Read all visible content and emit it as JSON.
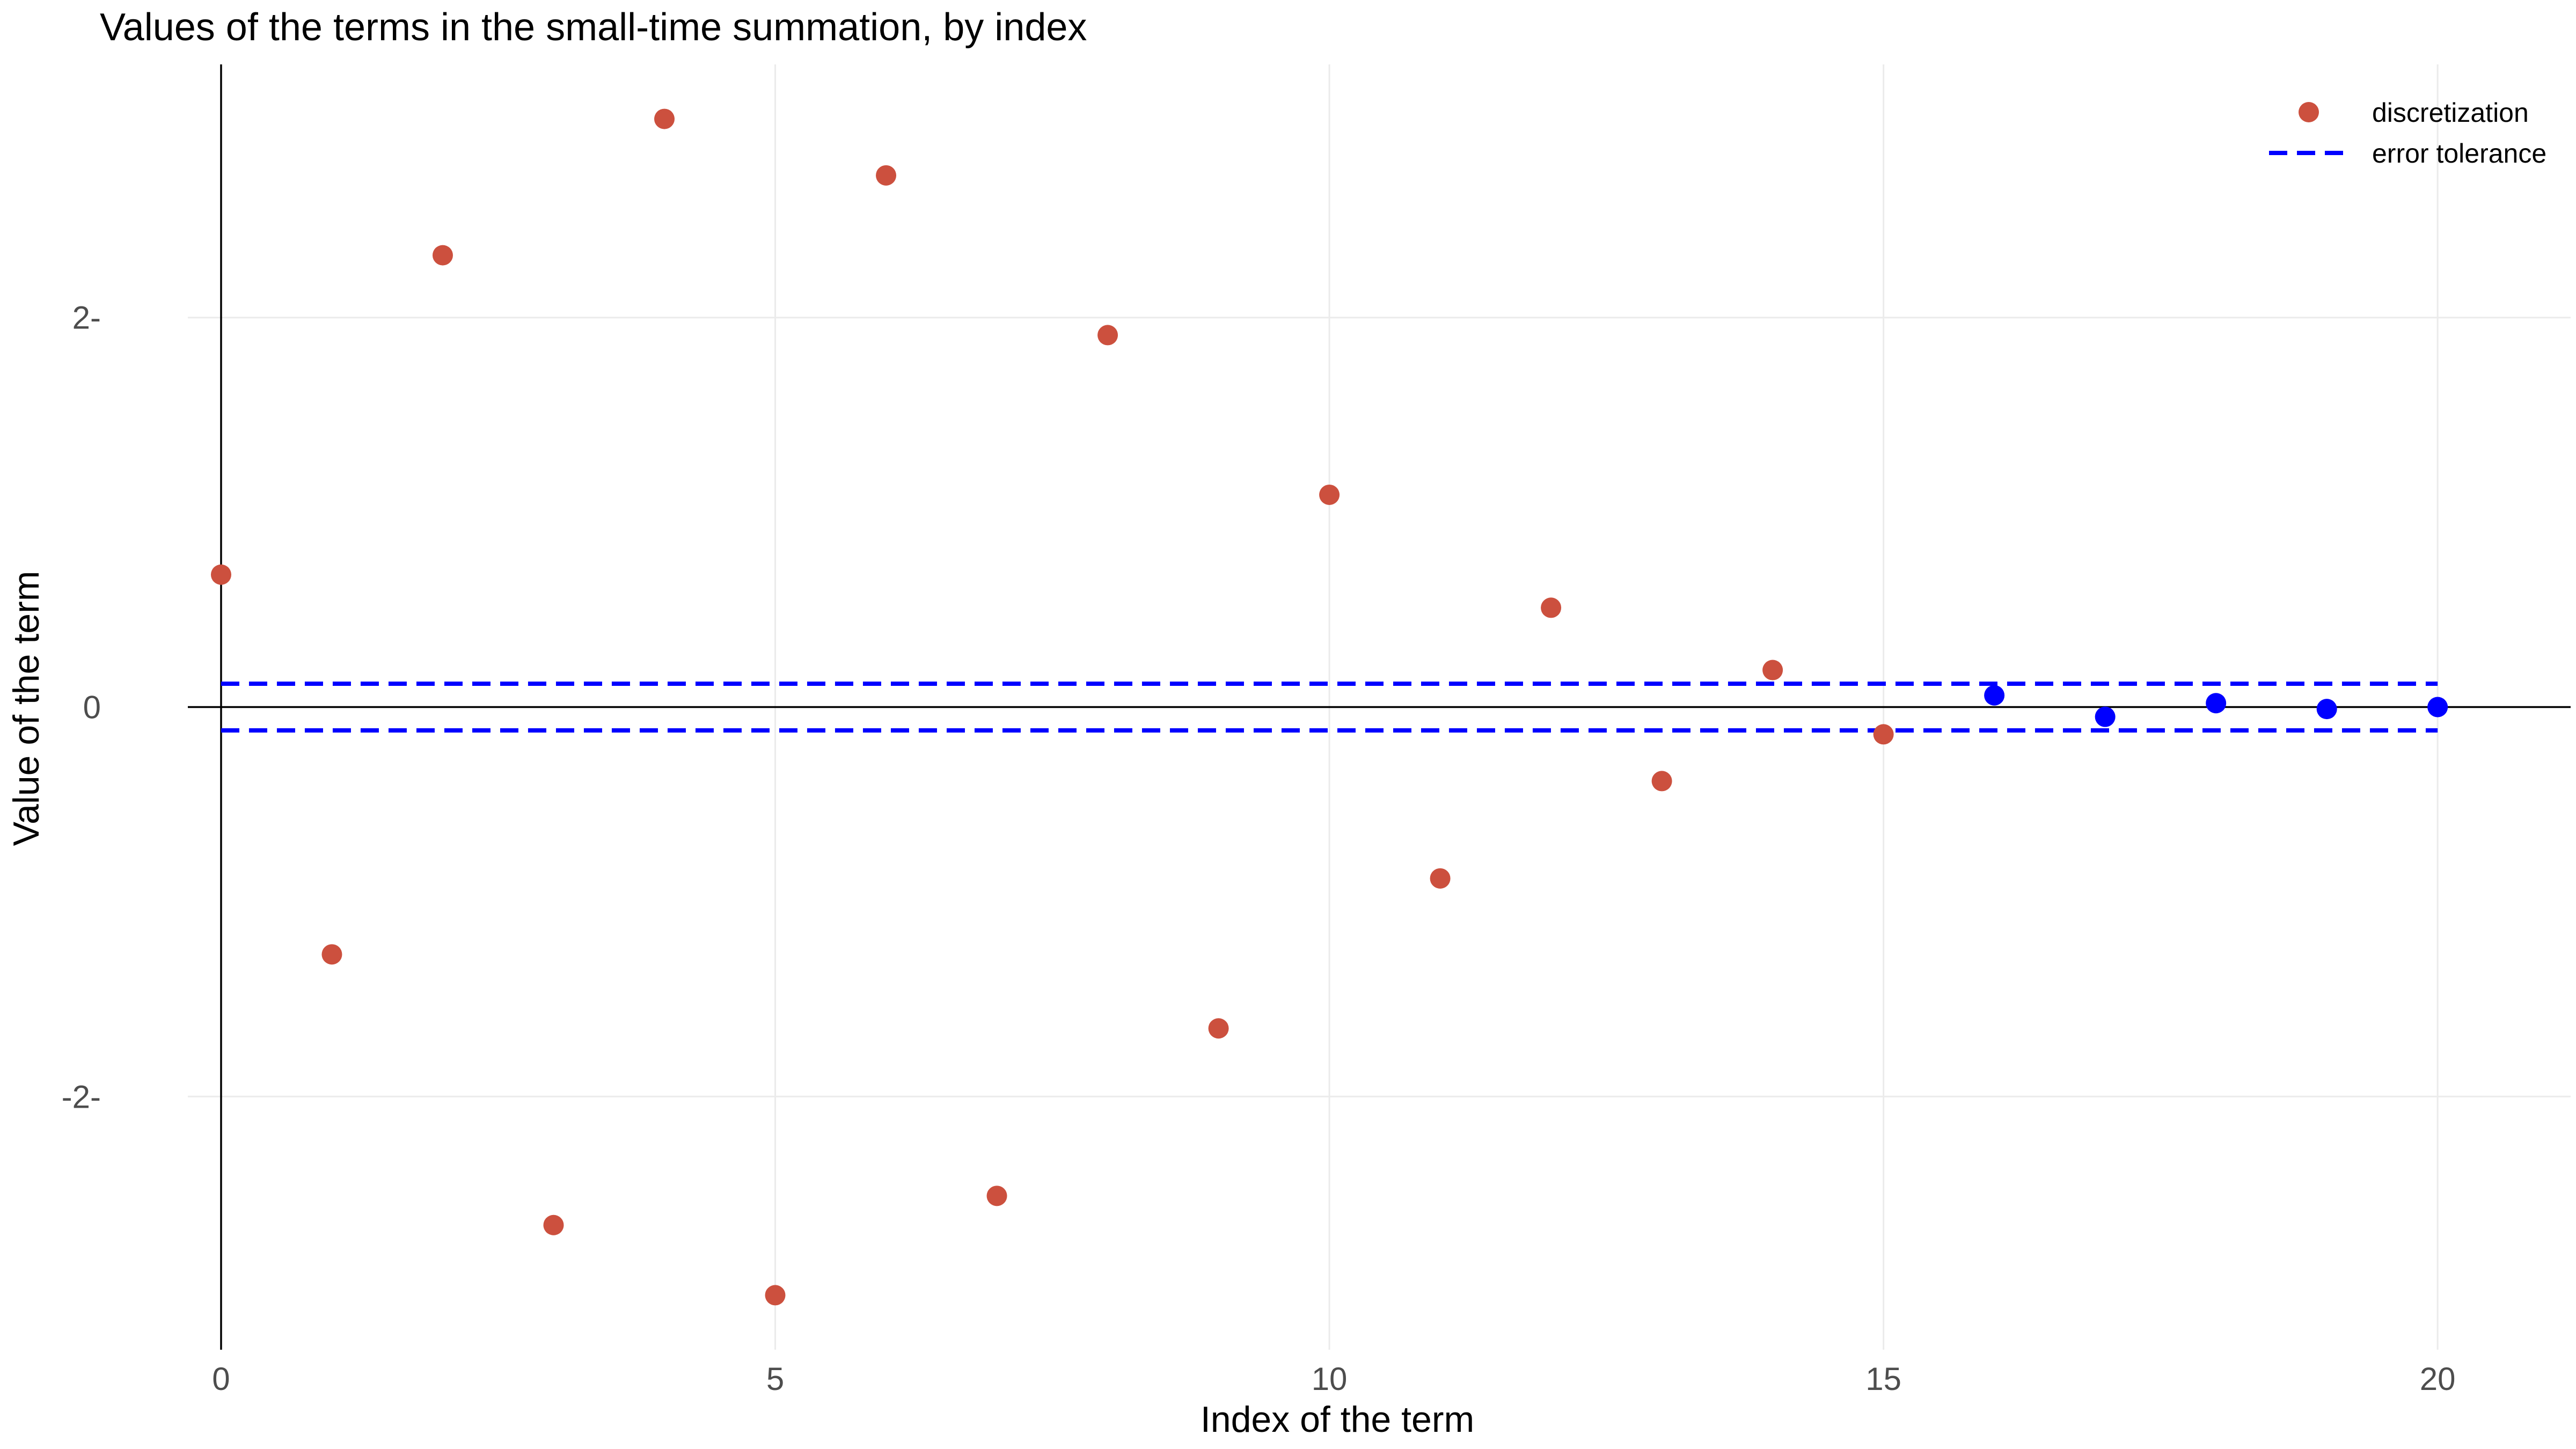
{
  "chart_data": {
    "type": "scatter",
    "title": "Values of the terms in the small-time summation, by index",
    "xlabel": "Index of the term",
    "ylabel": "Value of the term",
    "xlim": [
      -0.3,
      21.2
    ],
    "ylim": [
      -3.3,
      3.3
    ],
    "x_ticks": [
      0,
      5,
      10,
      15,
      20
    ],
    "x_tick_labels": [
      "0",
      "5",
      "10",
      "15",
      "20"
    ],
    "y_ticks": [
      -2,
      0,
      2
    ],
    "y_tick_labels": [
      "-2-",
      "0",
      "2-"
    ],
    "grid": true,
    "reference_lines": {
      "y_zero": true,
      "x_zero": true
    },
    "legend_position": "top-right",
    "series": [
      {
        "name": "discretization",
        "color": "#cc503e",
        "points": [
          {
            "x": 0,
            "y": 0.68
          },
          {
            "x": 1,
            "y": -1.27
          },
          {
            "x": 2,
            "y": 2.32
          },
          {
            "x": 3,
            "y": -2.66
          },
          {
            "x": 4,
            "y": 3.02
          },
          {
            "x": 5,
            "y": -3.02
          },
          {
            "x": 6,
            "y": 2.73
          },
          {
            "x": 7,
            "y": -2.51
          },
          {
            "x": 8,
            "y": 1.91
          },
          {
            "x": 9,
            "y": -1.65
          },
          {
            "x": 10,
            "y": 1.09
          },
          {
            "x": 11,
            "y": -0.88
          },
          {
            "x": 12,
            "y": 0.51
          },
          {
            "x": 13,
            "y": -0.38
          },
          {
            "x": 14,
            "y": 0.19
          },
          {
            "x": 15,
            "y": -0.14
          },
          {
            "x": 16,
            "y": 0.06,
            "color": "#0000ff"
          },
          {
            "x": 17,
            "y": -0.05,
            "color": "#0000ff"
          },
          {
            "x": 18,
            "y": 0.02,
            "color": "#0000ff"
          },
          {
            "x": 19,
            "y": -0.01,
            "color": "#0000ff"
          },
          {
            "x": 20,
            "y": 0.0,
            "color": "#0000ff"
          }
        ]
      },
      {
        "name": "error tolerance",
        "color": "#0000ff",
        "line_style": "dashed",
        "x_range": [
          0,
          20
        ],
        "y_values": [
          0.12,
          -0.12
        ]
      }
    ]
  }
}
